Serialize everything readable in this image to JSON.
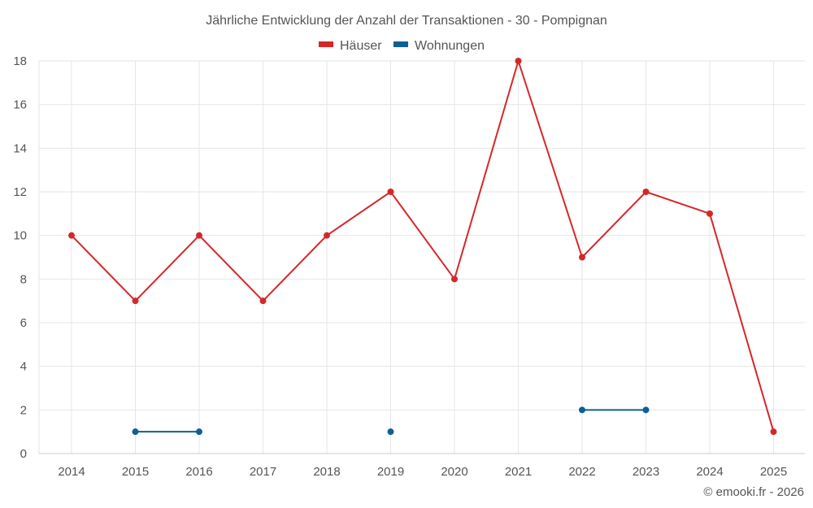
{
  "chart_data": {
    "type": "line",
    "title": "Jährliche Entwicklung der Anzahl der Transaktionen - 30 - Pompignan",
    "categories": [
      "2014",
      "2015",
      "2016",
      "2017",
      "2018",
      "2019",
      "2020",
      "2021",
      "2022",
      "2023",
      "2024",
      "2025"
    ],
    "series": [
      {
        "name": "Häuser",
        "color": "#d62728",
        "values": [
          10,
          7,
          10,
          7,
          10,
          12,
          8,
          18,
          9,
          12,
          11,
          1
        ]
      },
      {
        "name": "Wohnungen",
        "color": "#0e5f97",
        "values": [
          null,
          1,
          1,
          null,
          null,
          1,
          null,
          null,
          2,
          2,
          null,
          null
        ]
      }
    ],
    "ylim": [
      0,
      18
    ],
    "yticks": [
      0,
      2,
      4,
      6,
      8,
      10,
      12,
      14,
      16,
      18
    ],
    "grid": true,
    "legend": "top-center",
    "xlabel": "",
    "ylabel": ""
  },
  "credit": "© emooki.fr - 2026"
}
